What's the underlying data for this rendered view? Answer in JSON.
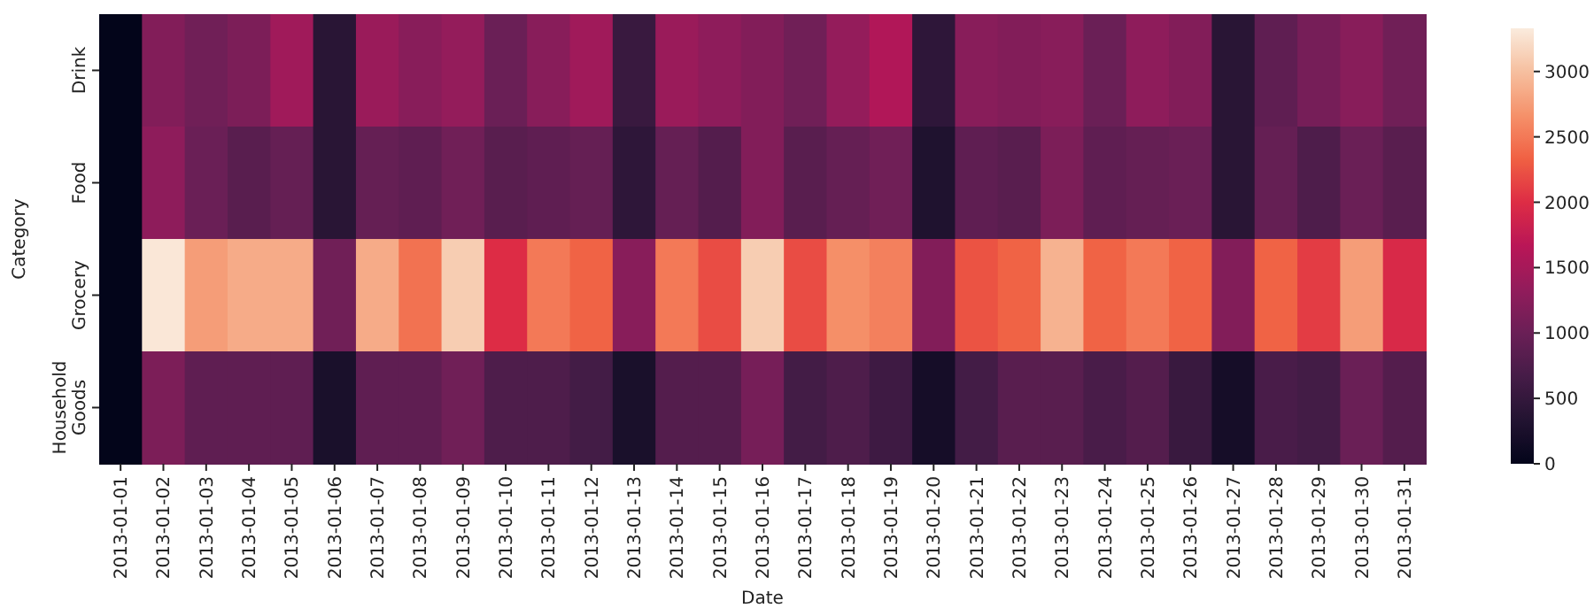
{
  "chart_data": {
    "type": "heatmap",
    "xlabel": "Date",
    "ylabel": "Category",
    "categories": [
      "2013-01-01",
      "2013-01-02",
      "2013-01-03",
      "2013-01-04",
      "2013-01-05",
      "2013-01-06",
      "2013-01-07",
      "2013-01-08",
      "2013-01-09",
      "2013-01-10",
      "2013-01-11",
      "2013-01-12",
      "2013-01-13",
      "2013-01-14",
      "2013-01-15",
      "2013-01-16",
      "2013-01-17",
      "2013-01-18",
      "2013-01-19",
      "2013-01-20",
      "2013-01-21",
      "2013-01-22",
      "2013-01-23",
      "2013-01-24",
      "2013-01-25",
      "2013-01-26",
      "2013-01-27",
      "2013-01-28",
      "2013-01-29",
      "2013-01-30",
      "2013-01-31"
    ],
    "y_categories": [
      "Drink",
      "Food",
      "Grocery",
      "Household Goods"
    ],
    "cells": [
      [
        0,
        1200,
        1050,
        1150,
        1450,
        400,
        1400,
        1250,
        1350,
        1000,
        1250,
        1450,
        550,
        1400,
        1300,
        1200,
        1050,
        1350,
        1600,
        450,
        1250,
        1200,
        1250,
        1000,
        1300,
        1200,
        400,
        900,
        1100,
        1250,
        1050
      ],
      [
        0,
        1300,
        1000,
        850,
        950,
        400,
        950,
        900,
        1050,
        850,
        900,
        950,
        450,
        950,
        800,
        1200,
        850,
        950,
        1050,
        300,
        900,
        850,
        1150,
        900,
        950,
        1000,
        400,
        950,
        750,
        1000,
        850
      ],
      [
        0,
        3300,
        2750,
        2850,
        2850,
        1050,
        2850,
        2450,
        3100,
        2000,
        2500,
        2350,
        1250,
        2500,
        2200,
        3100,
        2200,
        2650,
        2550,
        1200,
        2250,
        2350,
        2900,
        2350,
        2500,
        2350,
        1200,
        2350,
        2100,
        2750,
        1950
      ],
      [
        0,
        1150,
        900,
        900,
        900,
        250,
        900,
        900,
        1050,
        750,
        750,
        650,
        250,
        800,
        800,
        1100,
        650,
        750,
        600,
        200,
        650,
        850,
        850,
        700,
        800,
        550,
        200,
        700,
        650,
        1000,
        800
      ]
    ],
    "clim": [
      0,
      3330
    ],
    "cticks": [
      0,
      500,
      1000,
      1500,
      2000,
      2500,
      3000
    ]
  }
}
